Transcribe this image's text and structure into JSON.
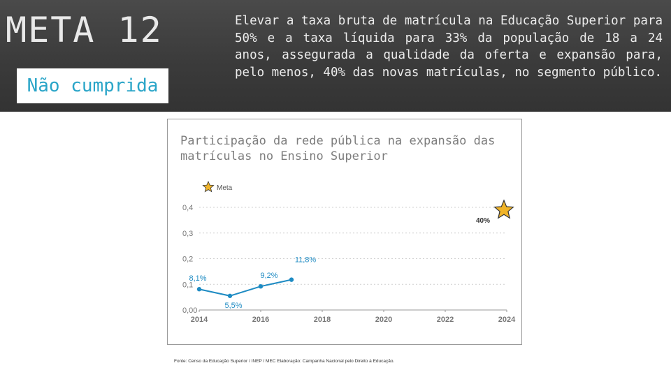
{
  "header": {
    "title": "META 12",
    "status": "Não cumprida",
    "goal_text": "Elevar a taxa bruta de matrícula na Educação Superior para 50% e a taxa líquida para 33% da população de 18 a 24 anos, assegurada a qualidade da oferta e expansão para, pelo menos, 40% das novas matrículas, no segmento público."
  },
  "chart_data": {
    "type": "line",
    "title": "Participação da rede pública na expansão das matrículas no Ensino Superior",
    "legend": {
      "label": "Meta",
      "icon": "star-icon",
      "placement": "top-left"
    },
    "x": [
      2014,
      2015,
      2016,
      2017
    ],
    "x_ticks": [
      "2014",
      "2016",
      "2018",
      "2020",
      "2022",
      "2024"
    ],
    "xlim": [
      2014,
      2024
    ],
    "y_ticks": [
      "0,00",
      "0,1",
      "0,2",
      "0,3",
      "0,4"
    ],
    "ylim": [
      0,
      0.4
    ],
    "series": [
      {
        "values": [
          0.081,
          0.055,
          0.092,
          0.118
        ],
        "labels": [
          "8,1%",
          "5,5%",
          "9,2%",
          "11,8%"
        ],
        "color": "#1e8bc3"
      }
    ],
    "target": {
      "x": 2024,
      "y": 0.4,
      "label": "40%",
      "icon": "star-icon",
      "color": "#f0b429"
    },
    "grid": "horizontal dotted"
  },
  "footer": {
    "source": "Fonte: Censo da Educação Superior / INEP / MEC Elaboração: Campanha Nacional pelo Direito à Educação."
  }
}
